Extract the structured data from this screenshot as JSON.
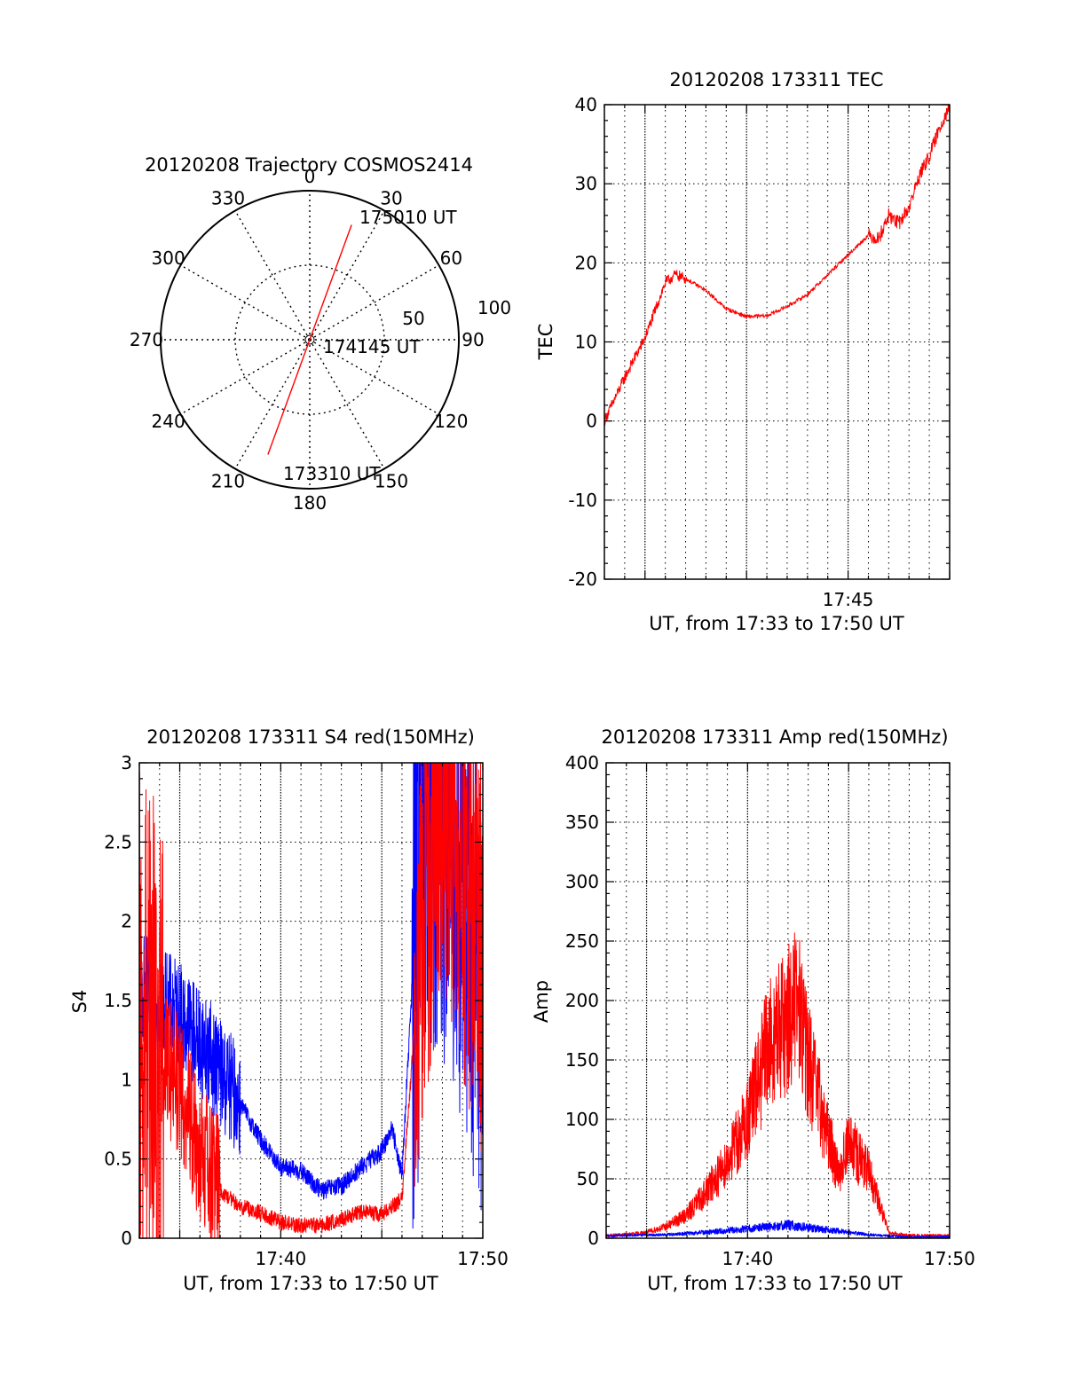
{
  "chart_data": [
    {
      "type": "polar",
      "title": "20120208 Trajectory COSMOS2414",
      "angle_labels": [
        "0",
        "30",
        "60",
        "90",
        "120",
        "150",
        "180",
        "210",
        "240",
        "270",
        "300",
        "330"
      ],
      "radius_labels": [
        "50",
        "100"
      ],
      "rlim": [
        0,
        100
      ],
      "grid": true,
      "trajectory_color": "#ff0000",
      "trajectory": [
        {
          "azimuth": 200,
          "zenith": 82
        },
        {
          "azimuth": 20,
          "zenith": 82
        }
      ],
      "annotations": [
        {
          "text": "175010 UT",
          "azimuth": 20,
          "zenith": 82
        },
        {
          "text": "174145 UT",
          "azimuth": 0,
          "zenith": 0
        },
        {
          "text": "173310 UT",
          "azimuth": 200,
          "zenith": 82
        }
      ]
    },
    {
      "type": "line",
      "title": "20120208 173311 TEC",
      "xlabel": "UT, from 17:33 to 17:50 UT",
      "ylabel": "TEC",
      "xlim": [
        "17:33",
        "17:50"
      ],
      "ylim": [
        -20,
        40
      ],
      "yticks": [
        "-20",
        "-10",
        "0",
        "10",
        "20",
        "30",
        "40"
      ],
      "xtick_labels": [
        {
          "x": "17:45",
          "label": "17:45"
        }
      ],
      "grid": true,
      "series": [
        {
          "color": "#ff0000",
          "x": [
            "17:33",
            "17:34",
            "17:35",
            "17:36",
            "17:36:30",
            "17:37",
            "17:38",
            "17:39",
            "17:40",
            "17:41",
            "17:42",
            "17:43",
            "17:44",
            "17:45",
            "17:46",
            "17:46:30",
            "17:47",
            "17:47:30",
            "17:48",
            "17:48:30",
            "17:49",
            "17:49:30",
            "17:50"
          ],
          "values": [
            0,
            5.5,
            10.5,
            17.5,
            18.5,
            18,
            16.5,
            14.2,
            13.2,
            13.3,
            14.5,
            16,
            18.5,
            21,
            23.5,
            23,
            26,
            25,
            27,
            31,
            33.5,
            37,
            40
          ]
        }
      ]
    },
    {
      "type": "line",
      "title": "20120208 173311 S4 red(150MHz)",
      "xlabel": "UT, from 17:33 to 17:50 UT",
      "ylabel": "S4",
      "xlim": [
        "17:33",
        "17:50"
      ],
      "ylim": [
        0,
        3
      ],
      "yticks": [
        "0",
        "0.5",
        "1",
        "1.5",
        "2",
        "2.5",
        "3"
      ],
      "xtick_labels": [
        {
          "x": "17:40",
          "label": "17:40"
        },
        {
          "x": "17:50",
          "label": "17:50"
        }
      ],
      "grid": true,
      "series": [
        {
          "color": "#0000ff",
          "x": [
            "17:33",
            "17:34",
            "17:35",
            "17:36",
            "17:37",
            "17:38",
            "17:39",
            "17:40",
            "17:41",
            "17:42",
            "17:43",
            "17:44",
            "17:45",
            "17:45:30",
            "17:46",
            "17:47",
            "17:48",
            "17:49",
            "17:50"
          ],
          "values": [
            1.6,
            1.5,
            1.4,
            1.25,
            1.05,
            0.85,
            0.62,
            0.45,
            0.42,
            0.3,
            0.33,
            0.45,
            0.55,
            0.7,
            0.4,
            2.8,
            2.6,
            2.2,
            1.6
          ]
        },
        {
          "color": "#ff0000",
          "x": [
            "17:33",
            "17:34",
            "17:35",
            "17:36",
            "17:37",
            "17:38",
            "17:39",
            "17:40",
            "17:41",
            "17:42",
            "17:43",
            "17:44",
            "17:45",
            "17:46",
            "17:47",
            "17:48",
            "17:49",
            "17:50"
          ],
          "values": [
            1.4,
            1.2,
            0.95,
            0.55,
            0.3,
            0.2,
            0.16,
            0.1,
            0.08,
            0.08,
            0.12,
            0.17,
            0.15,
            0.25,
            2.0,
            2.8,
            2.3,
            1.7
          ]
        }
      ]
    },
    {
      "type": "line",
      "title": "20120208 173311 Amp red(150MHz)",
      "xlabel": "UT, from 17:33 to 17:50 UT",
      "ylabel": "Amp",
      "xlim": [
        "17:33",
        "17:50"
      ],
      "ylim": [
        0,
        400
      ],
      "yticks": [
        "0",
        "50",
        "100",
        "150",
        "200",
        "250",
        "300",
        "350",
        "400"
      ],
      "xtick_labels": [
        {
          "x": "17:40",
          "label": "17:40"
        },
        {
          "x": "17:50",
          "label": "17:50"
        }
      ],
      "grid": true,
      "series": [
        {
          "color": "#ff0000",
          "x": [
            "17:33",
            "17:34",
            "17:35",
            "17:36",
            "17:37",
            "17:38",
            "17:39",
            "17:40",
            "17:41",
            "17:42",
            "17:42:30",
            "17:43",
            "17:44",
            "17:44:30",
            "17:45",
            "17:46",
            "17:47",
            "17:48",
            "17:50"
          ],
          "values": [
            2,
            3,
            5,
            10,
            20,
            40,
            65,
            100,
            160,
            185,
            200,
            150,
            85,
            55,
            80,
            55,
            5,
            2,
            2
          ]
        },
        {
          "color": "#0000ff",
          "x": [
            "17:33",
            "17:36",
            "17:38",
            "17:40",
            "17:42",
            "17:44",
            "17:46",
            "17:48",
            "17:50"
          ],
          "values": [
            2,
            3,
            5,
            8,
            11,
            7,
            3,
            1,
            1
          ]
        }
      ]
    }
  ]
}
